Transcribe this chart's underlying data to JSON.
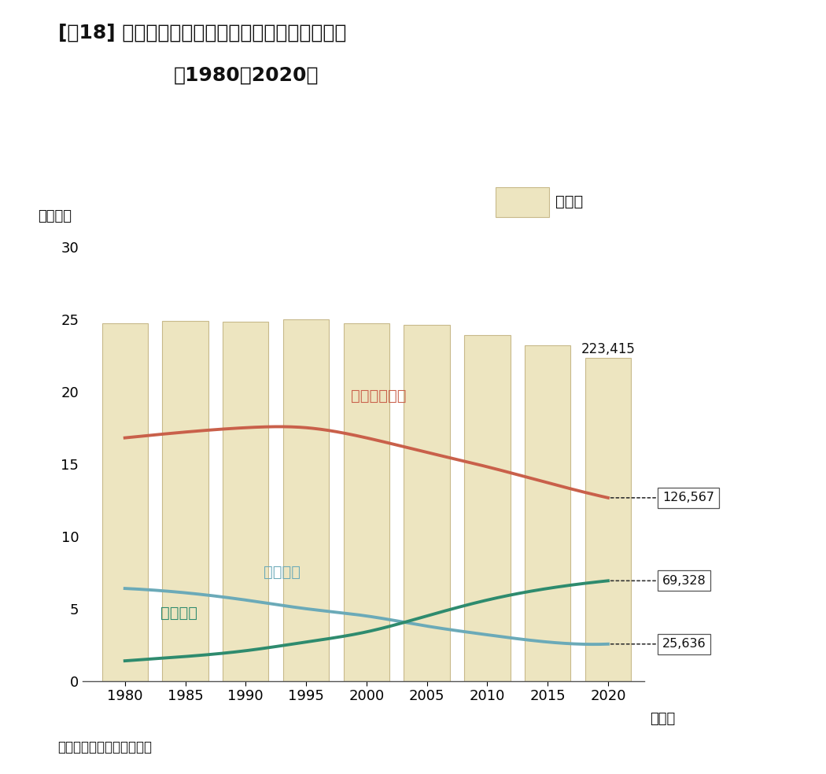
{
  "title_line1": "[図18] 八戸市の総人口・年齢三区分別人口の推移",
  "title_line2": "：1980〜2020年",
  "ylabel": "（万人）",
  "source": "資料：総務省「国勢調査」",
  "years": [
    1980,
    1985,
    1990,
    1995,
    2000,
    2005,
    2010,
    2015,
    2020
  ],
  "total_pop_man": [
    24.7,
    24.9,
    24.8,
    25.0,
    24.7,
    24.6,
    23.9,
    23.2,
    22.3
  ],
  "total_pop_actual": "223,415",
  "seiryo_man": [
    16.8,
    17.2,
    17.5,
    17.5,
    16.8,
    15.8,
    14.8,
    13.7,
    12.66
  ],
  "seiryo_label": "生産年齢人口",
  "seiryo_actual": "126,567",
  "nensei_man": [
    6.4,
    6.1,
    5.6,
    5.0,
    4.5,
    3.8,
    3.2,
    2.7,
    2.56
  ],
  "nensei_label": "年少人口",
  "nensei_actual": "25,636",
  "ronen_man": [
    1.4,
    1.7,
    2.1,
    2.7,
    3.4,
    4.5,
    5.6,
    6.4,
    6.93
  ],
  "ronen_label": "老年人口",
  "ronen_actual": "69,328",
  "legend_label": "総人口",
  "bar_color": "#EDE5C0",
  "bar_edge_color": "#C8B98A",
  "seiryo_color": "#C9604A",
  "nensei_color": "#6BAAB8",
  "ronen_color": "#2E8B6E",
  "ylim": [
    0,
    31
  ],
  "yticks": [
    0,
    5,
    10,
    15,
    20,
    25,
    30
  ],
  "background_color": "#ffffff"
}
